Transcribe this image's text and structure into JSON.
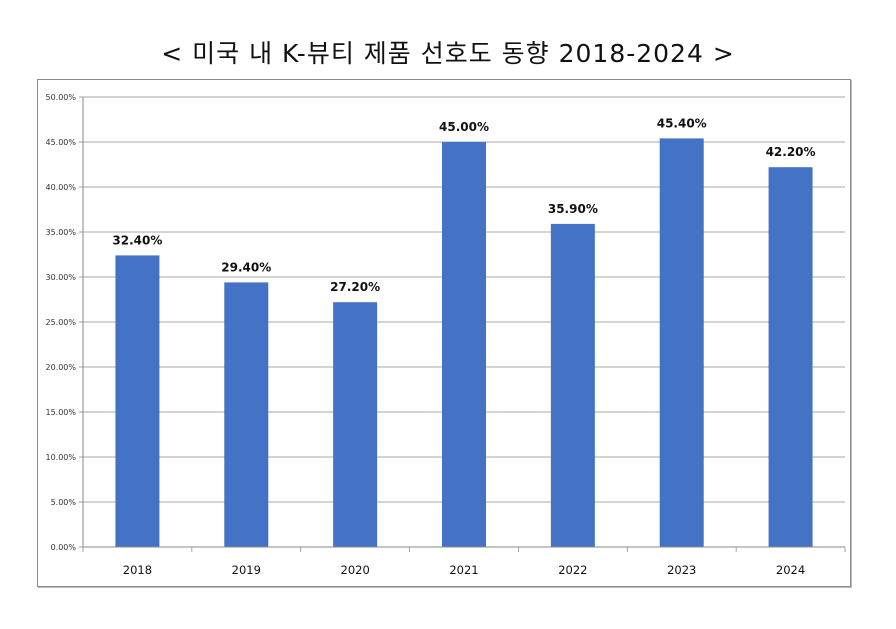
{
  "title": "< 미국 내 K-뷰티 제품 선호도 동향 2018-2024 >",
  "chart_data": {
    "type": "bar",
    "title": "< 미국 내 K-뷰티 제품 선호도 동향 2018-2024 >",
    "xlabel": "",
    "ylabel": "",
    "categories": [
      "2018",
      "2019",
      "2020",
      "2021",
      "2022",
      "2023",
      "2024"
    ],
    "values": [
      32.4,
      29.4,
      27.2,
      45.0,
      35.9,
      45.4,
      42.2
    ],
    "data_labels": [
      "32.40%",
      "29.40%",
      "27.20%",
      "45.00%",
      "35.90%",
      "45.40%",
      "42.20%"
    ],
    "ylim": [
      0,
      50
    ],
    "yticks": [
      0,
      5,
      10,
      15,
      20,
      25,
      30,
      35,
      40,
      45,
      50
    ],
    "ytick_labels": [
      "0.00%",
      "5.00%",
      "10.00%",
      "15.00%",
      "20.00%",
      "25.00%",
      "30.00%",
      "35.00%",
      "40.00%",
      "45.00%",
      "50.00%"
    ],
    "grid": true,
    "legend": "none",
    "bar_color": "#4472C4"
  }
}
